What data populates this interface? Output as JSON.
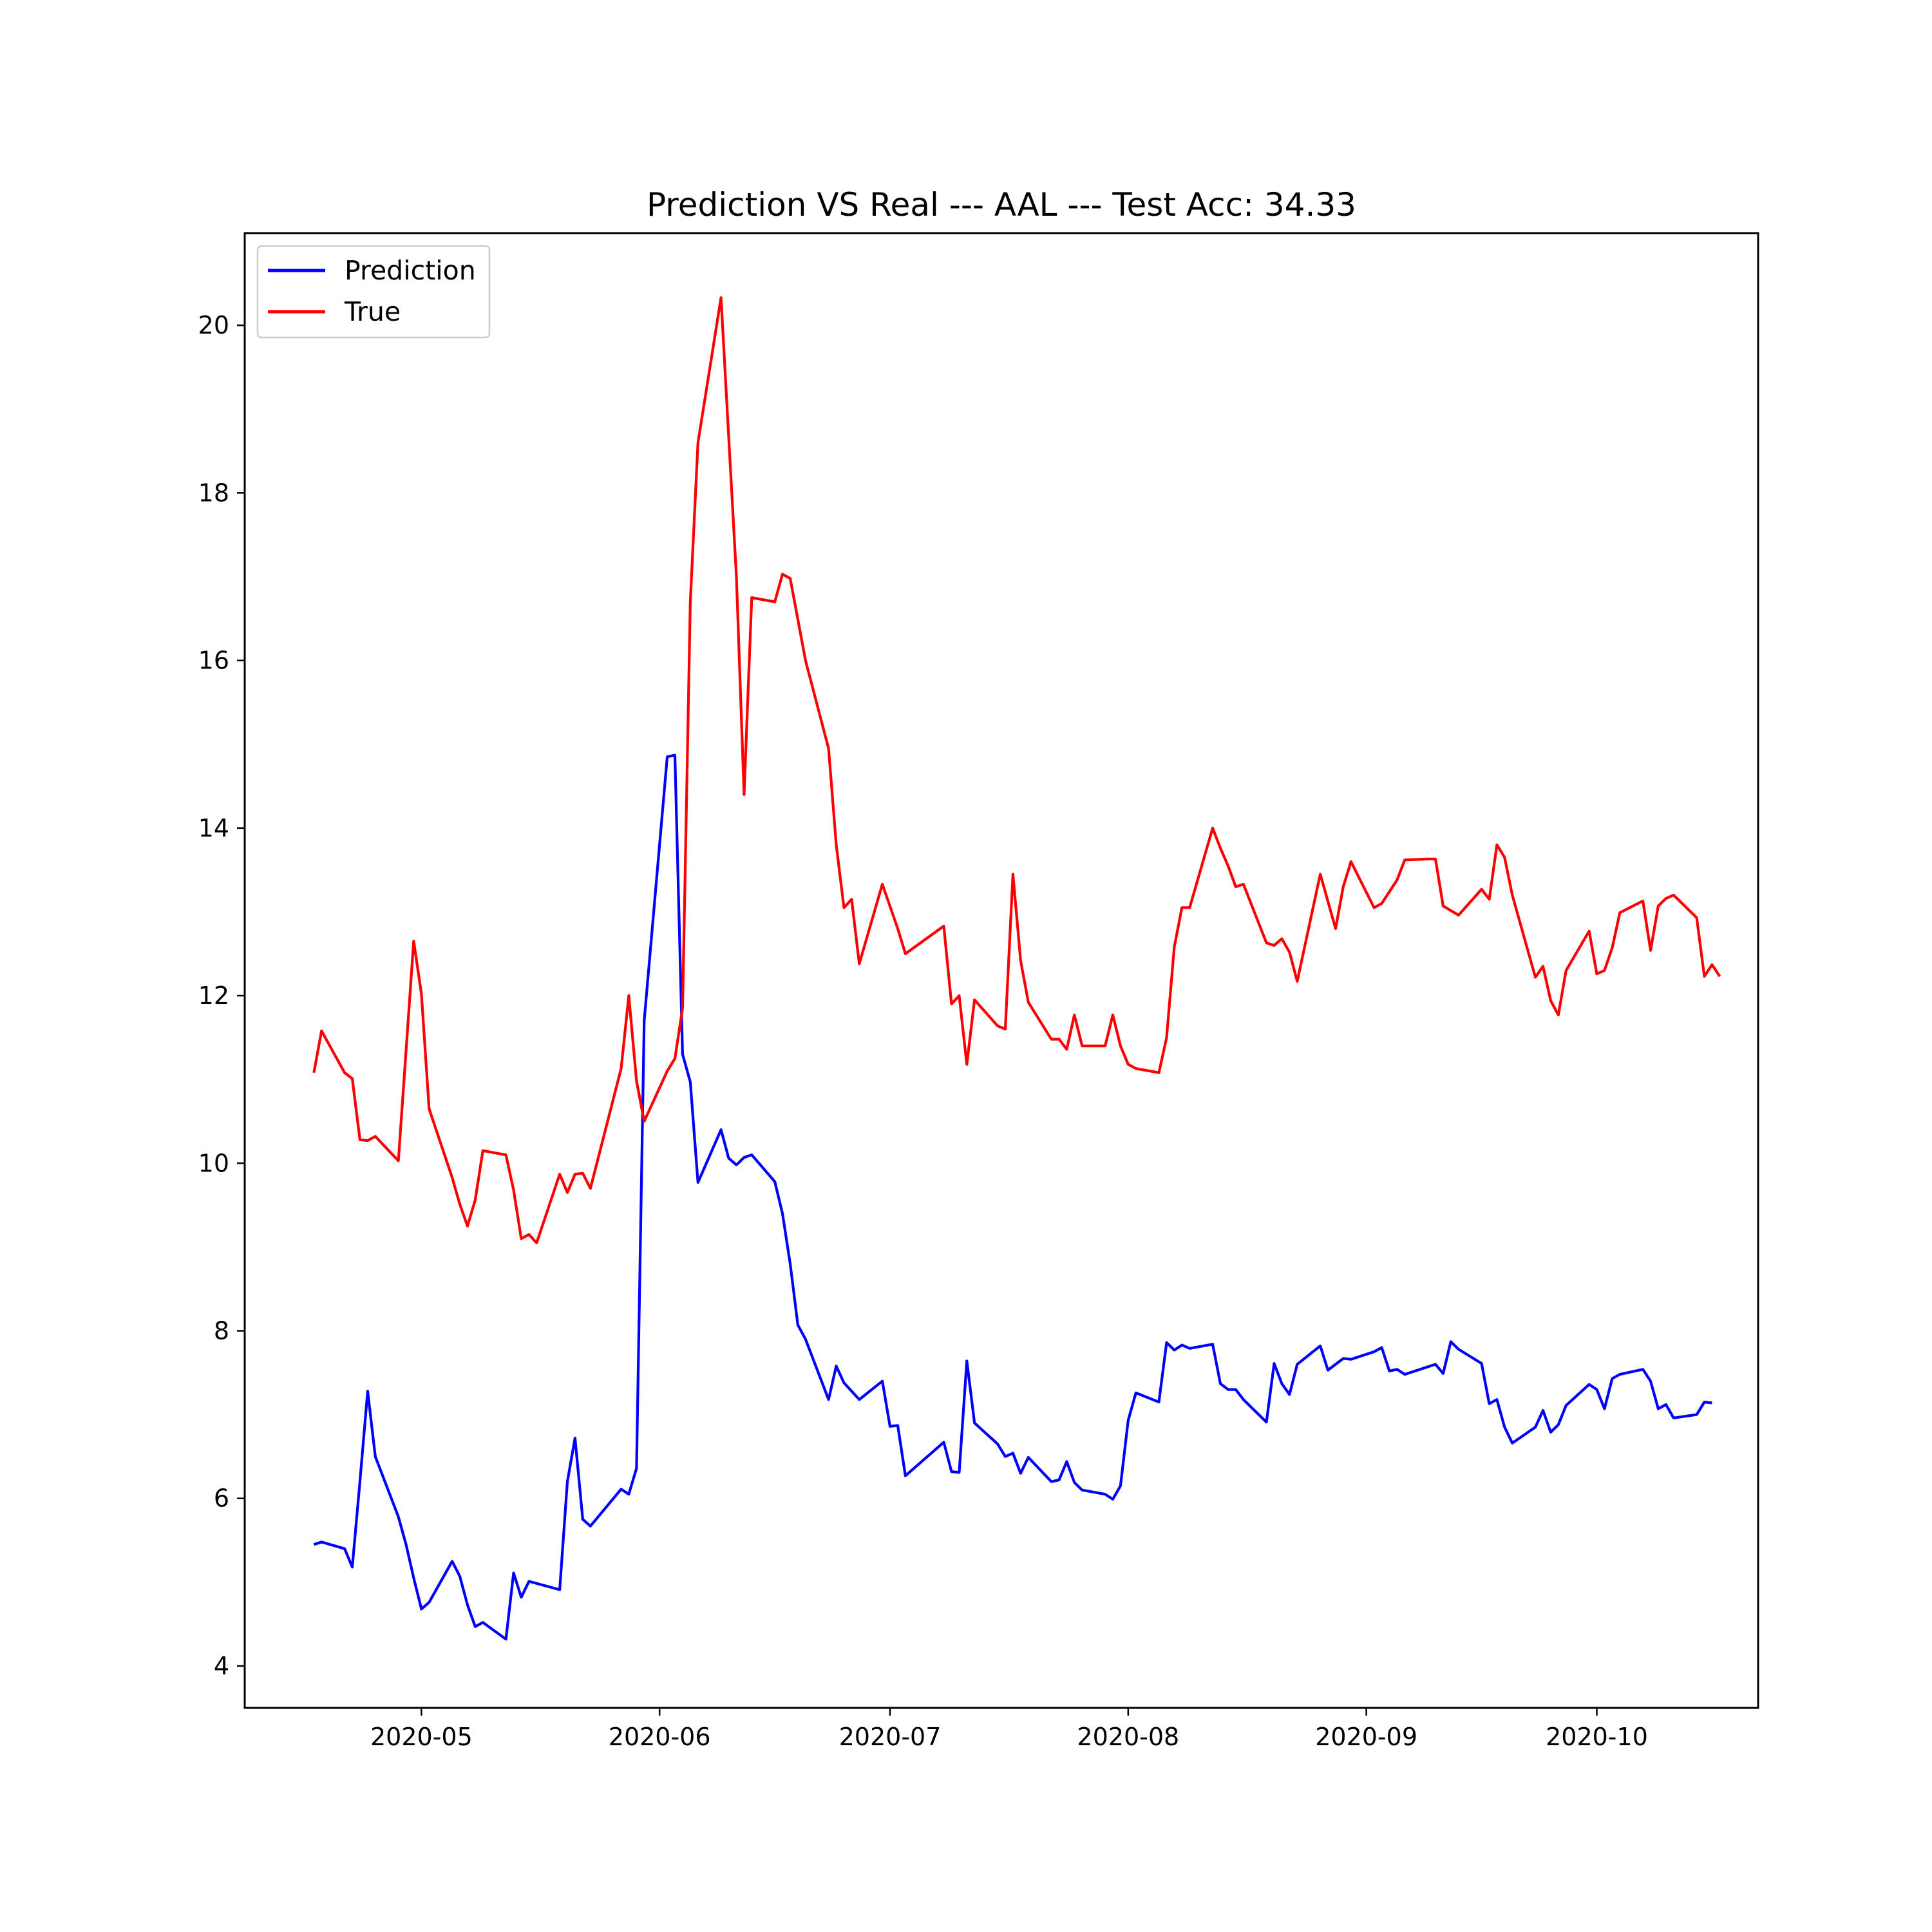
{
  "chart_data": {
    "type": "line",
    "title": "Prediction VS Real --- AAL --- Test Acc: 34.33",
    "xlabel": "",
    "ylabel": "",
    "xlim": [
      "2020-04-08",
      "2020-10-22"
    ],
    "ylim": [
      3.5,
      21.1
    ],
    "x_ticks": [
      "2020-05",
      "2020-06",
      "2020-07",
      "2020-08",
      "2020-09",
      "2020-10"
    ],
    "y_ticks": [
      "4",
      "6",
      "8",
      "10",
      "12",
      "14",
      "16",
      "18",
      "20"
    ],
    "grid": false,
    "legend_position": "upper-left",
    "series": [
      {
        "name": "Prediction",
        "color": "#0000ff",
        "points": [
          [
            "2020-04-17",
            5.45
          ],
          [
            "2020-04-18",
            5.48
          ],
          [
            "2020-04-21",
            5.4
          ],
          [
            "2020-04-22",
            5.18
          ],
          [
            "2020-04-23",
            6.2
          ],
          [
            "2020-04-24",
            7.28
          ],
          [
            "2020-04-25",
            6.5
          ],
          [
            "2020-04-28",
            5.78
          ],
          [
            "2020-04-29",
            5.45
          ],
          [
            "2020-04-30",
            5.05
          ],
          [
            "2020-05-01",
            4.68
          ],
          [
            "2020-05-02",
            4.76
          ],
          [
            "2020-05-05",
            5.25
          ],
          [
            "2020-05-06",
            5.07
          ],
          [
            "2020-05-07",
            4.73
          ],
          [
            "2020-05-08",
            4.47
          ],
          [
            "2020-05-09",
            4.52
          ],
          [
            "2020-05-12",
            4.32
          ],
          [
            "2020-05-13",
            5.11
          ],
          [
            "2020-05-14",
            4.82
          ],
          [
            "2020-05-15",
            5.01
          ],
          [
            "2020-05-19",
            4.91
          ],
          [
            "2020-05-20",
            6.2
          ],
          [
            "2020-05-21",
            6.72
          ],
          [
            "2020-05-22",
            5.75
          ],
          [
            "2020-05-23",
            5.67
          ],
          [
            "2020-05-27",
            6.11
          ],
          [
            "2020-05-28",
            6.05
          ],
          [
            "2020-05-29",
            6.36
          ],
          [
            "2020-05-30",
            11.7
          ],
          [
            "2020-06-02",
            14.85
          ],
          [
            "2020-06-03",
            14.87
          ],
          [
            "2020-06-04",
            11.3
          ],
          [
            "2020-06-05",
            10.97
          ],
          [
            "2020-06-06",
            9.77
          ],
          [
            "2020-06-09",
            10.4
          ],
          [
            "2020-06-10",
            10.06
          ],
          [
            "2020-06-11",
            9.98
          ],
          [
            "2020-06-12",
            10.07
          ],
          [
            "2020-06-13",
            10.1
          ],
          [
            "2020-06-16",
            9.78
          ],
          [
            "2020-06-17",
            9.4
          ],
          [
            "2020-06-18",
            8.8
          ],
          [
            "2020-06-19",
            8.07
          ],
          [
            "2020-06-20",
            7.9
          ],
          [
            "2020-06-23",
            7.18
          ],
          [
            "2020-06-24",
            7.58
          ],
          [
            "2020-06-25",
            7.38
          ],
          [
            "2020-06-27",
            7.18
          ],
          [
            "2020-06-30",
            7.4
          ],
          [
            "2020-07-01",
            6.86
          ],
          [
            "2020-07-02",
            6.87
          ],
          [
            "2020-07-03",
            6.27
          ],
          [
            "2020-07-08",
            6.67
          ],
          [
            "2020-07-09",
            6.32
          ],
          [
            "2020-07-10",
            6.31
          ],
          [
            "2020-07-11",
            7.64
          ],
          [
            "2020-07-12",
            6.9
          ],
          [
            "2020-07-15",
            6.65
          ],
          [
            "2020-07-16",
            6.5
          ],
          [
            "2020-07-17",
            6.54
          ],
          [
            "2020-07-18",
            6.3
          ],
          [
            "2020-07-19",
            6.49
          ],
          [
            "2020-07-22",
            6.2
          ],
          [
            "2020-07-23",
            6.22
          ],
          [
            "2020-07-24",
            6.44
          ],
          [
            "2020-07-25",
            6.19
          ],
          [
            "2020-07-26",
            6.1
          ],
          [
            "2020-07-29",
            6.05
          ],
          [
            "2020-07-30",
            5.99
          ],
          [
            "2020-07-31",
            6.15
          ],
          [
            "2020-08-01",
            6.93
          ],
          [
            "2020-08-02",
            7.26
          ],
          [
            "2020-08-05",
            7.15
          ],
          [
            "2020-08-06",
            7.86
          ],
          [
            "2020-08-07",
            7.77
          ],
          [
            "2020-08-08",
            7.83
          ],
          [
            "2020-08-09",
            7.79
          ],
          [
            "2020-08-12",
            7.84
          ],
          [
            "2020-08-13",
            7.37
          ],
          [
            "2020-08-14",
            7.3
          ],
          [
            "2020-08-15",
            7.3
          ],
          [
            "2020-08-16",
            7.18
          ],
          [
            "2020-08-19",
            6.91
          ],
          [
            "2020-08-20",
            7.61
          ],
          [
            "2020-08-21",
            7.37
          ],
          [
            "2020-08-22",
            7.24
          ],
          [
            "2020-08-23",
            7.6
          ],
          [
            "2020-08-26",
            7.82
          ],
          [
            "2020-08-27",
            7.53
          ],
          [
            "2020-08-29",
            7.67
          ],
          [
            "2020-08-30",
            7.66
          ],
          [
            "2020-09-02",
            7.75
          ],
          [
            "2020-09-03",
            7.8
          ],
          [
            "2020-09-04",
            7.52
          ],
          [
            "2020-09-05",
            7.54
          ],
          [
            "2020-09-06",
            7.48
          ],
          [
            "2020-09-09",
            7.57
          ],
          [
            "2020-09-10",
            7.6
          ],
          [
            "2020-09-11",
            7.49
          ],
          [
            "2020-09-12",
            7.87
          ],
          [
            "2020-09-13",
            7.78
          ],
          [
            "2020-09-16",
            7.61
          ],
          [
            "2020-09-17",
            7.13
          ],
          [
            "2020-09-18",
            7.18
          ],
          [
            "2020-09-19",
            6.85
          ],
          [
            "2020-09-20",
            6.66
          ],
          [
            "2020-09-23",
            6.85
          ],
          [
            "2020-09-24",
            7.05
          ],
          [
            "2020-09-25",
            6.79
          ],
          [
            "2020-09-26",
            6.88
          ],
          [
            "2020-09-27",
            7.11
          ],
          [
            "2020-09-30",
            7.36
          ],
          [
            "2020-10-01",
            7.3
          ],
          [
            "2020-10-02",
            7.07
          ],
          [
            "2020-10-03",
            7.43
          ],
          [
            "2020-10-04",
            7.48
          ],
          [
            "2020-10-07",
            7.54
          ],
          [
            "2020-10-08",
            7.4
          ],
          [
            "2020-10-09",
            7.07
          ],
          [
            "2020-10-10",
            7.12
          ],
          [
            "2020-10-11",
            6.96
          ],
          [
            "2020-10-14",
            7.0
          ],
          [
            "2020-10-15",
            7.15
          ],
          [
            "2020-10-16",
            7.14
          ]
        ]
      },
      {
        "name": "True",
        "color": "#ff0000",
        "points": [
          [
            "2020-04-17",
            11.08
          ],
          [
            "2020-04-18",
            11.58
          ],
          [
            "2020-04-21",
            11.08
          ],
          [
            "2020-04-22",
            11.01
          ],
          [
            "2020-04-23",
            10.28
          ],
          [
            "2020-04-24",
            10.27
          ],
          [
            "2020-04-25",
            10.32
          ],
          [
            "2020-04-28",
            10.03
          ],
          [
            "2020-04-30",
            12.65
          ],
          [
            "2020-05-01",
            12.02
          ],
          [
            "2020-05-02",
            10.65
          ],
          [
            "2020-05-05",
            9.83
          ],
          [
            "2020-05-06",
            9.51
          ],
          [
            "2020-05-07",
            9.25
          ],
          [
            "2020-05-08",
            9.56
          ],
          [
            "2020-05-09",
            10.15
          ],
          [
            "2020-05-12",
            10.1
          ],
          [
            "2020-05-13",
            9.68
          ],
          [
            "2020-05-14",
            9.1
          ],
          [
            "2020-05-15",
            9.15
          ],
          [
            "2020-05-16",
            9.05
          ],
          [
            "2020-05-19",
            9.87
          ],
          [
            "2020-05-20",
            9.65
          ],
          [
            "2020-05-21",
            9.87
          ],
          [
            "2020-05-22",
            9.88
          ],
          [
            "2020-05-23",
            9.7
          ],
          [
            "2020-05-27",
            11.13
          ],
          [
            "2020-05-28",
            12.0
          ],
          [
            "2020-05-29",
            10.98
          ],
          [
            "2020-05-30",
            10.5
          ],
          [
            "2020-06-02",
            11.1
          ],
          [
            "2020-06-03",
            11.25
          ],
          [
            "2020-06-04",
            11.85
          ],
          [
            "2020-06-05",
            16.7
          ],
          [
            "2020-06-06",
            18.6
          ],
          [
            "2020-06-09",
            20.33
          ],
          [
            "2020-06-11",
            17.0
          ],
          [
            "2020-06-12",
            14.4
          ],
          [
            "2020-06-13",
            16.75
          ],
          [
            "2020-06-16",
            16.7
          ],
          [
            "2020-06-17",
            17.03
          ],
          [
            "2020-06-18",
            16.98
          ],
          [
            "2020-06-20",
            16.0
          ],
          [
            "2020-06-23",
            14.95
          ],
          [
            "2020-06-24",
            13.8
          ],
          [
            "2020-06-25",
            13.05
          ],
          [
            "2020-06-26",
            13.15
          ],
          [
            "2020-06-27",
            12.38
          ],
          [
            "2020-06-30",
            13.33
          ],
          [
            "2020-07-02",
            12.8
          ],
          [
            "2020-07-03",
            12.5
          ],
          [
            "2020-07-08",
            12.83
          ],
          [
            "2020-07-09",
            11.9
          ],
          [
            "2020-07-10",
            12.0
          ],
          [
            "2020-07-11",
            11.18
          ],
          [
            "2020-07-12",
            11.95
          ],
          [
            "2020-07-15",
            11.64
          ],
          [
            "2020-07-16",
            11.6
          ],
          [
            "2020-07-17",
            13.45
          ],
          [
            "2020-07-18",
            12.42
          ],
          [
            "2020-07-19",
            11.92
          ],
          [
            "2020-07-22",
            11.48
          ],
          [
            "2020-07-23",
            11.48
          ],
          [
            "2020-07-24",
            11.36
          ],
          [
            "2020-07-25",
            11.77
          ],
          [
            "2020-07-26",
            11.4
          ],
          [
            "2020-07-29",
            11.4
          ],
          [
            "2020-07-30",
            11.77
          ],
          [
            "2020-07-31",
            11.4
          ],
          [
            "2020-08-01",
            11.18
          ],
          [
            "2020-08-02",
            11.13
          ],
          [
            "2020-08-05",
            11.08
          ],
          [
            "2020-08-06",
            11.5
          ],
          [
            "2020-08-07",
            12.58
          ],
          [
            "2020-08-08",
            13.05
          ],
          [
            "2020-08-09",
            13.05
          ],
          [
            "2020-08-12",
            14.0
          ],
          [
            "2020-08-13",
            13.76
          ],
          [
            "2020-08-14",
            13.55
          ],
          [
            "2020-08-15",
            13.3
          ],
          [
            "2020-08-16",
            13.33
          ],
          [
            "2020-08-19",
            12.63
          ],
          [
            "2020-08-20",
            12.6
          ],
          [
            "2020-08-21",
            12.68
          ],
          [
            "2020-08-22",
            12.52
          ],
          [
            "2020-08-23",
            12.17
          ],
          [
            "2020-08-26",
            13.45
          ],
          [
            "2020-08-28",
            12.8
          ],
          [
            "2020-08-29",
            13.3
          ],
          [
            "2020-08-30",
            13.6
          ],
          [
            "2020-09-02",
            13.05
          ],
          [
            "2020-09-03",
            13.1
          ],
          [
            "2020-09-05",
            13.38
          ],
          [
            "2020-09-06",
            13.62
          ],
          [
            "2020-09-09",
            13.63
          ],
          [
            "2020-09-10",
            13.63
          ],
          [
            "2020-09-11",
            13.07
          ],
          [
            "2020-09-13",
            12.96
          ],
          [
            "2020-09-16",
            13.27
          ],
          [
            "2020-09-17",
            13.15
          ],
          [
            "2020-09-18",
            13.8
          ],
          [
            "2020-09-19",
            13.65
          ],
          [
            "2020-09-20",
            13.2
          ],
          [
            "2020-09-23",
            12.22
          ],
          [
            "2020-09-24",
            12.35
          ],
          [
            "2020-09-25",
            11.94
          ],
          [
            "2020-09-26",
            11.77
          ],
          [
            "2020-09-27",
            12.3
          ],
          [
            "2020-09-30",
            12.77
          ],
          [
            "2020-10-01",
            12.26
          ],
          [
            "2020-10-02",
            12.3
          ],
          [
            "2020-10-03",
            12.57
          ],
          [
            "2020-10-04",
            12.99
          ],
          [
            "2020-10-07",
            13.13
          ],
          [
            "2020-10-08",
            12.54
          ],
          [
            "2020-10-09",
            13.07
          ],
          [
            "2020-10-10",
            13.16
          ],
          [
            "2020-10-11",
            13.2
          ],
          [
            "2020-10-14",
            12.93
          ],
          [
            "2020-10-15",
            12.23
          ],
          [
            "2020-10-16",
            12.37
          ],
          [
            "2020-10-17",
            12.23
          ]
        ]
      }
    ]
  }
}
